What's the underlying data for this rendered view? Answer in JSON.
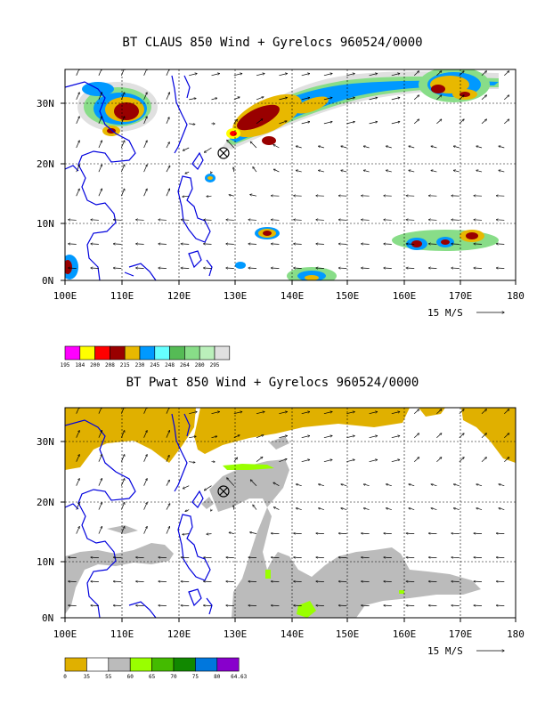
{
  "panel1": {
    "title": "BT CLAUS 850 Wind + Gyrelocs 960524/0000",
    "y_labels": [
      "30N",
      "20N",
      "10N",
      "0N"
    ],
    "x_labels": [
      "100E",
      "110E",
      "120E",
      "130E",
      "140E",
      "150E",
      "160E",
      "170E",
      "180"
    ],
    "ref_vector_label": "15 M/S",
    "colorbar_labels": [
      "195",
      "184",
      "200",
      "208",
      "215",
      "230",
      "245",
      "248",
      "264",
      "280",
      "295"
    ],
    "colorbar_colors": [
      "#ff00ff",
      "#ffff00",
      "#ff0000",
      "#990000",
      "#e8b800",
      "#0099ff",
      "#66ffff",
      "#55bb55",
      "#88dd88",
      "#bbf0bb",
      "#e0e0e0"
    ]
  },
  "panel2": {
    "title": "BT Pwat 850 Wind + Gyrelocs 960524/0000",
    "y_labels": [
      "30N",
      "20N",
      "10N",
      "0N"
    ],
    "x_labels": [
      "100E",
      "110E",
      "120E",
      "130E",
      "140E",
      "150E",
      "160E",
      "170E",
      "180"
    ],
    "ref_vector_label": "15 M/S",
    "colorbar_labels": [
      "0",
      "35",
      "55",
      "60",
      "65",
      "70",
      "75",
      "80",
      "64.63"
    ],
    "colorbar_colors": [
      "#e0b000",
      "#ffffff",
      "#bbbbbb",
      "#99ff00",
      "#44bb00",
      "#118800",
      "#0077dd",
      "#8800cc"
    ]
  },
  "chart_data": [
    {
      "type": "heatmap",
      "title": "BT CLAUS 850 Wind + Gyrelocs 960524/0000",
      "xlim": [
        100,
        180
      ],
      "ylim": [
        0,
        35
      ],
      "xticks": [
        "100E",
        "110E",
        "120E",
        "130E",
        "140E",
        "150E",
        "160E",
        "170E",
        "180"
      ],
      "yticks": [
        "0N",
        "10N",
        "20N",
        "30N"
      ],
      "colorbar": [
        "195",
        "184",
        "200",
        "208",
        "215",
        "230",
        "245",
        "248",
        "264",
        "280",
        "295"
      ],
      "gyre_location": {
        "lon": 127.8,
        "lat": 21.5
      },
      "reference_vector": "15 M/S",
      "cold_clouds": [
        {
          "lon": 107,
          "lat": 28,
          "level": "200"
        },
        {
          "lon": 133,
          "lat": 27.5,
          "level": "200"
        },
        {
          "lon": 136,
          "lat": 8,
          "level": "208"
        },
        {
          "lon": 165,
          "lat": 6,
          "level": "200"
        },
        {
          "lon": 172,
          "lat": 31,
          "level": "200"
        }
      ]
    },
    {
      "type": "heatmap",
      "title": "BT Pwat 850 Wind + Gyrelocs 960524/0000",
      "xlim": [
        100,
        180
      ],
      "ylim": [
        0,
        35
      ],
      "xticks": [
        "100E",
        "110E",
        "120E",
        "130E",
        "140E",
        "150E",
        "160E",
        "170E",
        "180"
      ],
      "yticks": [
        "0N",
        "10N",
        "20N",
        "30N"
      ],
      "colorbar": [
        "0",
        "35",
        "55",
        "60",
        "65",
        "70",
        "75",
        "80",
        "64.63"
      ],
      "gyre_location": {
        "lon": 127.8,
        "lat": 21.5
      },
      "reference_vector": "15 M/S"
    }
  ]
}
